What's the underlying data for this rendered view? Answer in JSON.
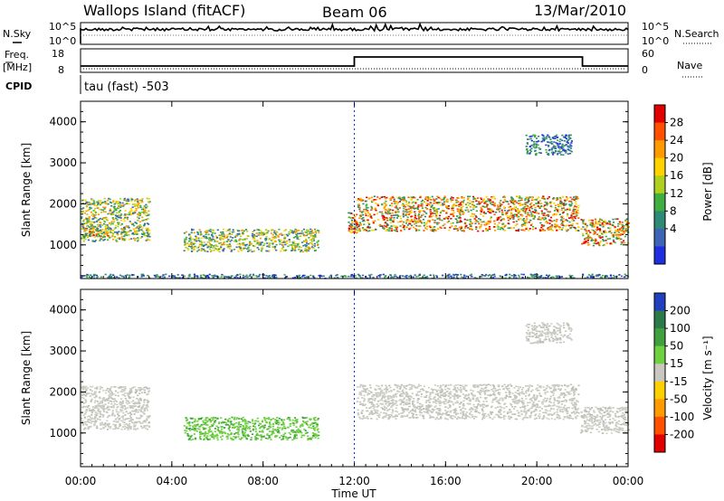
{
  "header": {
    "station": "Wallops Island (fitACF)",
    "beam": "Beam 06",
    "date": "13/Mar/2010"
  },
  "param_panels": {
    "nsky_label": "N.Sky",
    "nsky_ticks": [
      "10^5",
      "10^0"
    ],
    "nsky_right_ticks": [
      "10^5",
      "10^0"
    ],
    "nsearch_label": "N.Search",
    "freq_label_1": "Freq.",
    "freq_label_2": "[MHz]",
    "freq_ticks": [
      "18",
      "8"
    ],
    "nave_ticks": [
      "60",
      "0"
    ],
    "nave_label": "Nave",
    "cpid_label": "CPID",
    "cpid_text": "tau (fast) -503"
  },
  "x_axis": {
    "label": "Time UT",
    "ticks": [
      "00:00",
      "04:00",
      "08:00",
      "12:00",
      "16:00",
      "20:00",
      "00:00"
    ],
    "range_hours": [
      0,
      24
    ]
  },
  "chart_data": [
    {
      "type": "heatmap",
      "name": "power",
      "ylabel": "Slant Range [km]",
      "ylim": [
        180,
        4500
      ],
      "yticks": [
        1000,
        2000,
        3000,
        4000
      ],
      "colorbar_label": "Power [dB]",
      "colorbar_ticks": [
        "28",
        "24",
        "20",
        "16",
        "12",
        "8",
        "4"
      ],
      "colorbar_colors": [
        "#e00000",
        "#ff5000",
        "#ff9a00",
        "#ffd200",
        "#b0d020",
        "#3fb040",
        "#2e8a74",
        "#3f63b5",
        "#1f2fe0"
      ],
      "bands": [
        {
          "x": [
            0.0,
            3.0
          ],
          "range_km": [
            1100,
            2150
          ],
          "level": "medium"
        },
        {
          "x": [
            0.1,
            1.2
          ],
          "range_km": [
            1200,
            1500
          ],
          "level": "high"
        },
        {
          "x": [
            4.5,
            10.4
          ],
          "range_km": [
            850,
            1400
          ],
          "level": "medium"
        },
        {
          "x": [
            11.7,
            12.1
          ],
          "range_km": [
            1300,
            1800
          ],
          "level": "high"
        },
        {
          "x": [
            12.1,
            21.8
          ],
          "range_km": [
            1350,
            2200
          ],
          "level": "high"
        },
        {
          "x": [
            19.5,
            21.5
          ],
          "range_km": [
            3200,
            3700
          ],
          "level": "low"
        },
        {
          "x": [
            21.9,
            24.0
          ],
          "range_km": [
            1000,
            1650
          ],
          "level": "high"
        },
        {
          "x": [
            0.0,
            24.0
          ],
          "range_km": [
            200,
            300
          ],
          "level": "low"
        }
      ]
    },
    {
      "type": "heatmap",
      "name": "velocity",
      "ylabel": "Slant Range [km]",
      "ylim": [
        180,
        4500
      ],
      "yticks": [
        1000,
        2000,
        3000,
        4000
      ],
      "colorbar_label": "Velocity [m s⁻¹]",
      "colorbar_ticks": [
        "200",
        "100",
        "50",
        "15",
        "-15",
        "-50",
        "-100",
        "-200"
      ],
      "colorbar_colors": [
        "#2040c0",
        "#2c7a4a",
        "#40a040",
        "#6fd040",
        "#c8c8c0",
        "#ffd000",
        "#ff9a00",
        "#ff5000",
        "#e00000"
      ],
      "bands": [
        {
          "x": [
            0.0,
            3.0
          ],
          "range_km": [
            1100,
            2150
          ],
          "level": "ground"
        },
        {
          "x": [
            4.5,
            10.4
          ],
          "range_km": [
            850,
            1400
          ],
          "level": "positive"
        },
        {
          "x": [
            12.1,
            21.8
          ],
          "range_km": [
            1350,
            2200
          ],
          "level": "ground"
        },
        {
          "x": [
            21.9,
            24.0
          ],
          "range_km": [
            1000,
            1650
          ],
          "level": "ground"
        },
        {
          "x": [
            19.5,
            21.5
          ],
          "range_km": [
            3200,
            3700
          ],
          "level": "ground"
        }
      ]
    }
  ]
}
